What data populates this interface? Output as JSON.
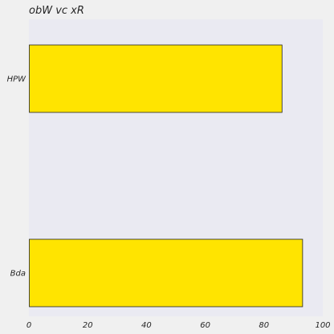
{
  "chart_data": {
    "type": "bar",
    "orientation": "horizontal",
    "title": "obW vc  xR",
    "xlabel": "",
    "ylabel": "",
    "categories": [
      "HPW",
      "Bda"
    ],
    "values": [
      86,
      93
    ],
    "xlim": [
      0,
      100
    ],
    "x_ticks": [
      0,
      20,
      40,
      60,
      80,
      100
    ],
    "grid": false,
    "legend": "none",
    "colors": {
      "bar_fill": "#FFE400",
      "bar_edge": "#222222",
      "plot_background": "#EAEAF2",
      "page_background": "#F0F0F0"
    }
  }
}
